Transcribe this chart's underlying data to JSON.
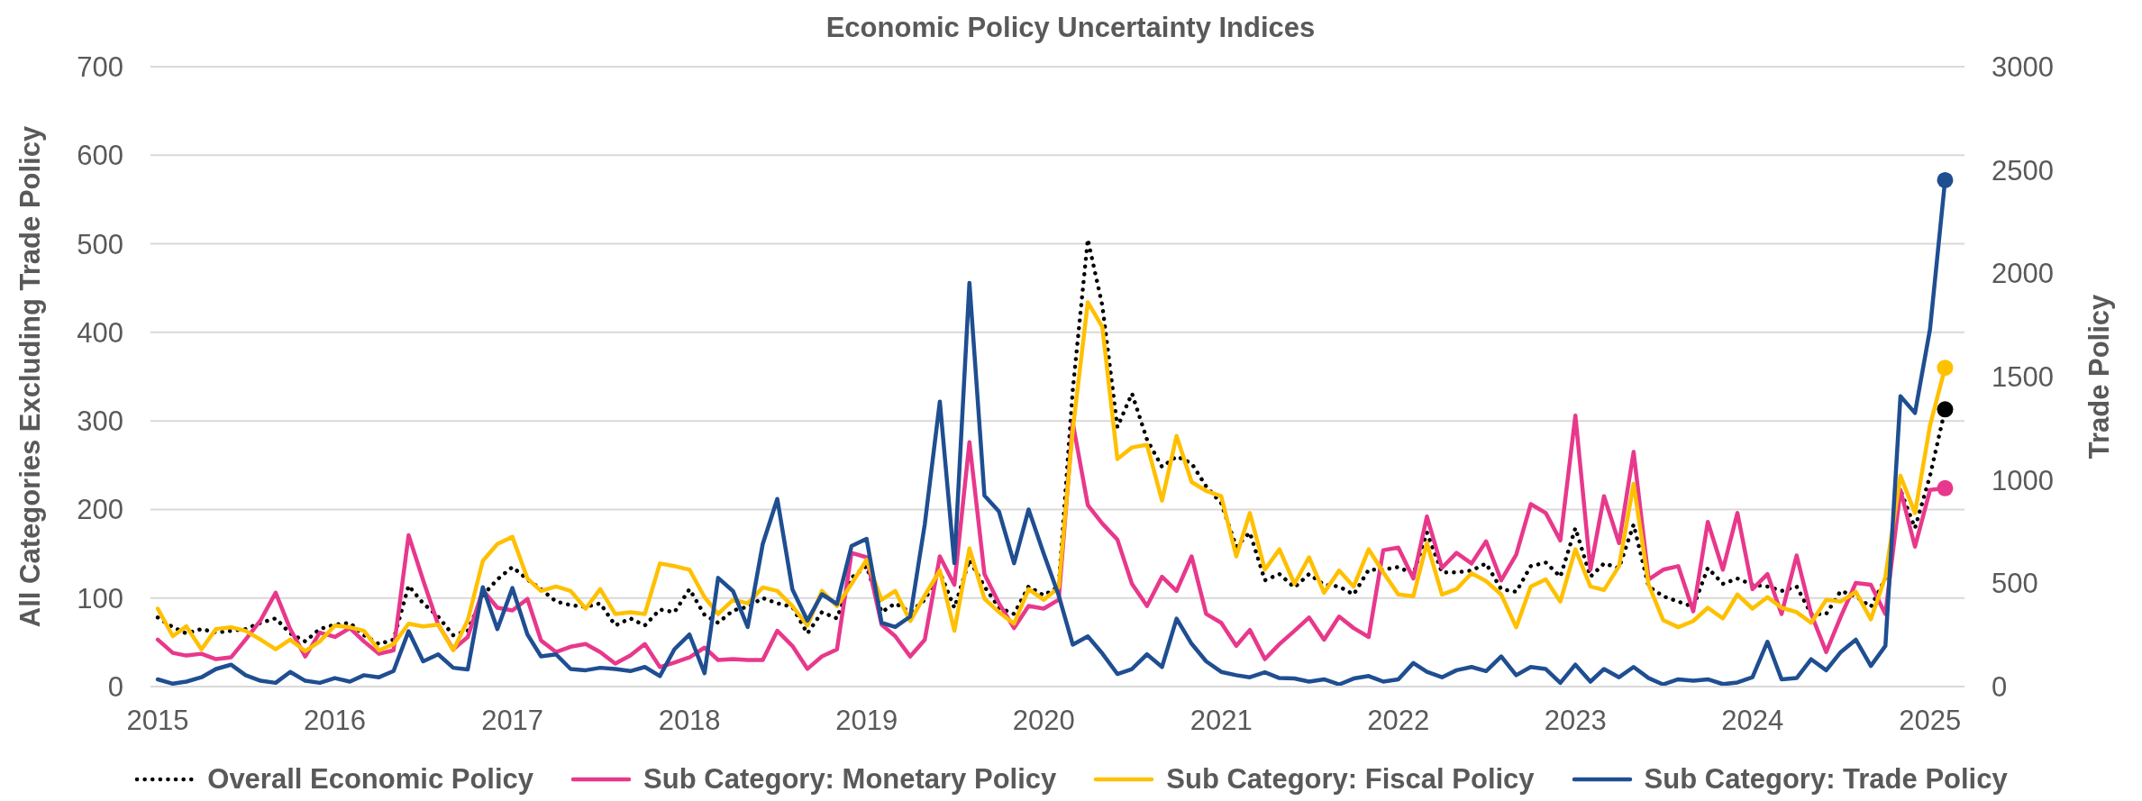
{
  "chart_data": {
    "type": "line",
    "title": "Economic Policy Uncertainty Indices",
    "ylabel": "All Categories Excluding Trade Policy",
    "y2label": "Trade Policy",
    "x": [
      "2015-01",
      "2015-02",
      "2015-03",
      "2015-04",
      "2015-05",
      "2015-06",
      "2015-07",
      "2015-08",
      "2015-09",
      "2015-10",
      "2015-11",
      "2015-12",
      "2016-01",
      "2016-02",
      "2016-03",
      "2016-04",
      "2016-05",
      "2016-06",
      "2016-07",
      "2016-08",
      "2016-09",
      "2016-10",
      "2016-11",
      "2016-12",
      "2017-01",
      "2017-02",
      "2017-03",
      "2017-04",
      "2017-05",
      "2017-06",
      "2017-07",
      "2017-08",
      "2017-09",
      "2017-10",
      "2017-11",
      "2017-12",
      "2018-01",
      "2018-02",
      "2018-03",
      "2018-04",
      "2018-05",
      "2018-06",
      "2018-07",
      "2018-08",
      "2018-09",
      "2018-10",
      "2018-11",
      "2018-12",
      "2019-01",
      "2019-02",
      "2019-03",
      "2019-04",
      "2019-05",
      "2019-06",
      "2019-07",
      "2019-08",
      "2019-09",
      "2019-10",
      "2019-11",
      "2019-12",
      "2020-01",
      "2020-02",
      "2020-03",
      "2020-04",
      "2020-05",
      "2020-06",
      "2020-07",
      "2020-08",
      "2020-09",
      "2020-10",
      "2020-11",
      "2020-12",
      "2021-01",
      "2021-02",
      "2021-03",
      "2021-04",
      "2021-05",
      "2021-06",
      "2021-07",
      "2021-08",
      "2021-09",
      "2021-10",
      "2021-11",
      "2021-12",
      "2022-01",
      "2022-02",
      "2022-03",
      "2022-04",
      "2022-05",
      "2022-06",
      "2022-07",
      "2022-08",
      "2022-09",
      "2022-10",
      "2022-11",
      "2022-12",
      "2023-01",
      "2023-02",
      "2023-03",
      "2023-04",
      "2023-05",
      "2023-06",
      "2023-07",
      "2023-08",
      "2023-09",
      "2023-10",
      "2023-11",
      "2023-12",
      "2024-01",
      "2024-02",
      "2024-03",
      "2024-04",
      "2024-05",
      "2024-06",
      "2024-07",
      "2024-08",
      "2024-09",
      "2024-10",
      "2024-11",
      "2024-12",
      "2025-01",
      "2025-02"
    ],
    "series": [
      {
        "name": "Overall Economic Policy",
        "color": "#000000",
        "line_style": "dotted",
        "values": [
          78,
          67,
          60,
          65,
          61,
          63,
          65,
          72,
          77,
          60,
          51,
          65,
          70,
          72,
          58,
          48,
          53,
          114,
          94,
          79,
          58,
          63,
          103,
          121,
          135,
          121,
          110,
          96,
          92,
          90,
          94,
          69,
          77,
          69,
          87,
          84,
          110,
          81,
          72,
          86,
          90,
          100,
          94,
          90,
          60,
          84,
          77,
          123,
          136,
          84,
          94,
          84,
          98,
          129,
          89,
          143,
          113,
          89,
          82,
          113,
          103,
          113,
          335,
          505,
          430,
          293,
          331,
          279,
          248,
          260,
          252,
          226,
          207,
          158,
          174,
          120,
          127,
          112,
          127,
          115,
          113,
          104,
          132,
          132,
          135,
          127,
          174,
          129,
          129,
          131,
          139,
          110,
          107,
          136,
          140,
          124,
          179,
          124,
          139,
          134,
          183,
          113,
          102,
          96,
          90,
          134,
          116,
          122,
          115,
          113,
          108,
          113,
          82,
          82,
          108,
          102,
          90,
          122,
          222,
          179,
          238,
          313
        ]
      },
      {
        "name": "Sub Category: Monetary Policy",
        "color": "#e8388c",
        "values": [
          53,
          38,
          35,
          37,
          31,
          33,
          53,
          75,
          106,
          65,
          34,
          61,
          56,
          66,
          51,
          37,
          41,
          171,
          120,
          70,
          42,
          56,
          109,
          89,
          86,
          99,
          52,
          39,
          45,
          48,
          39,
          26,
          35,
          48,
          22,
          27,
          33,
          44,
          30,
          31,
          30,
          30,
          63,
          46,
          20,
          34,
          42,
          151,
          146,
          70,
          57,
          34,
          53,
          147,
          115,
          276,
          127,
          94,
          66,
          91,
          88,
          98,
          298,
          205,
          184,
          166,
          116,
          91,
          124,
          108,
          147,
          82,
          72,
          46,
          64,
          31,
          48,
          63,
          78,
          53,
          79,
          66,
          56,
          154,
          157,
          122,
          192,
          134,
          151,
          139,
          164,
          120,
          149,
          206,
          196,
          165,
          306,
          132,
          215,
          162,
          265,
          121,
          132,
          136,
          85,
          186,
          132,
          196,
          110,
          127,
          82,
          148,
          82,
          39,
          79,
          117,
          115,
          82,
          222,
          158,
          222,
          224
        ]
      },
      {
        "name": "Sub Category: Fiscal Policy",
        "color": "#ffc000",
        "values": [
          88,
          57,
          68,
          42,
          65,
          67,
          63,
          53,
          42,
          53,
          40,
          51,
          69,
          67,
          63,
          41,
          48,
          71,
          68,
          70,
          41,
          75,
          142,
          161,
          169,
          122,
          108,
          113,
          108,
          88,
          110,
          82,
          84,
          82,
          139,
          136,
          132,
          101,
          82,
          98,
          94,
          112,
          108,
          91,
          69,
          108,
          91,
          116,
          143,
          98,
          108,
          74,
          103,
          131,
          63,
          156,
          99,
          84,
          71,
          110,
          98,
          112,
          290,
          434,
          406,
          257,
          270,
          273,
          210,
          283,
          231,
          221,
          215,
          147,
          196,
          132,
          155,
          116,
          146,
          106,
          131,
          113,
          155,
          129,
          104,
          102,
          162,
          104,
          110,
          128,
          119,
          104,
          67,
          113,
          121,
          96,
          155,
          113,
          109,
          136,
          229,
          115,
          75,
          67,
          74,
          89,
          77,
          104,
          88,
          101,
          89,
          84,
          72,
          98,
          96,
          107,
          76,
          124,
          238,
          196,
          295,
          360
        ]
      },
      {
        "name": "Sub Category: Trade Policy",
        "color": "#1f4e91",
        "axis": "y2",
        "values": [
          35,
          14,
          24,
          45,
          85,
          106,
          55,
          28,
          18,
          71,
          28,
          18,
          41,
          24,
          55,
          45,
          75,
          268,
          122,
          156,
          91,
          83,
          481,
          278,
          477,
          252,
          146,
          156,
          85,
          79,
          91,
          85,
          75,
          95,
          51,
          181,
          252,
          65,
          526,
          461,
          288,
          690,
          908,
          471,
          319,
          447,
          400,
          680,
          715,
          309,
          288,
          339,
          786,
          1379,
          597,
          1954,
          924,
          847,
          597,
          857,
          644,
          441,
          203,
          243,
          160,
          61,
          85,
          156,
          95,
          329,
          207,
          122,
          71,
          55,
          45,
          69,
          41,
          39,
          24,
          35,
          10,
          39,
          51,
          24,
          35,
          114,
          71,
          45,
          79,
          95,
          75,
          146,
          55,
          95,
          85,
          18,
          106,
          24,
          85,
          45,
          95,
          41,
          10,
          35,
          28,
          35,
          12,
          20,
          45,
          217,
          35,
          41,
          132,
          79,
          167,
          227,
          100,
          197,
          1405,
          1324,
          1730,
          2451
        ]
      },
      {
        "type": "scatter",
        "color": "#000000",
        "x": [
          "2025-02"
        ],
        "values": [
          313
        ]
      },
      {
        "type": "scatter",
        "color": "#e8388c",
        "x": [
          "2025-02"
        ],
        "values": [
          224
        ]
      },
      {
        "type": "scatter",
        "color": "#ffc000",
        "x": [
          "2025-02"
        ],
        "values": [
          360
        ]
      },
      {
        "type": "scatter",
        "color": "#1f4e91",
        "axis": "y2",
        "x": [
          "2025-02"
        ],
        "values": [
          2451
        ]
      }
    ],
    "xlim": [
      "2014-12-17",
      "2025-03-13"
    ],
    "xticks": [
      "2015",
      "2016",
      "2017",
      "2018",
      "2019",
      "2020",
      "2021",
      "2022",
      "2023",
      "2024",
      "2025"
    ],
    "ylim": [
      0,
      700
    ],
    "yticks": [
      0,
      100,
      200,
      300,
      400,
      500,
      600,
      700
    ],
    "y2lim": [
      0,
      3000
    ],
    "y2ticks": [
      0,
      500,
      1000,
      1500,
      2000,
      2500,
      3000
    ],
    "grid": "y",
    "legend": "bottom"
  }
}
